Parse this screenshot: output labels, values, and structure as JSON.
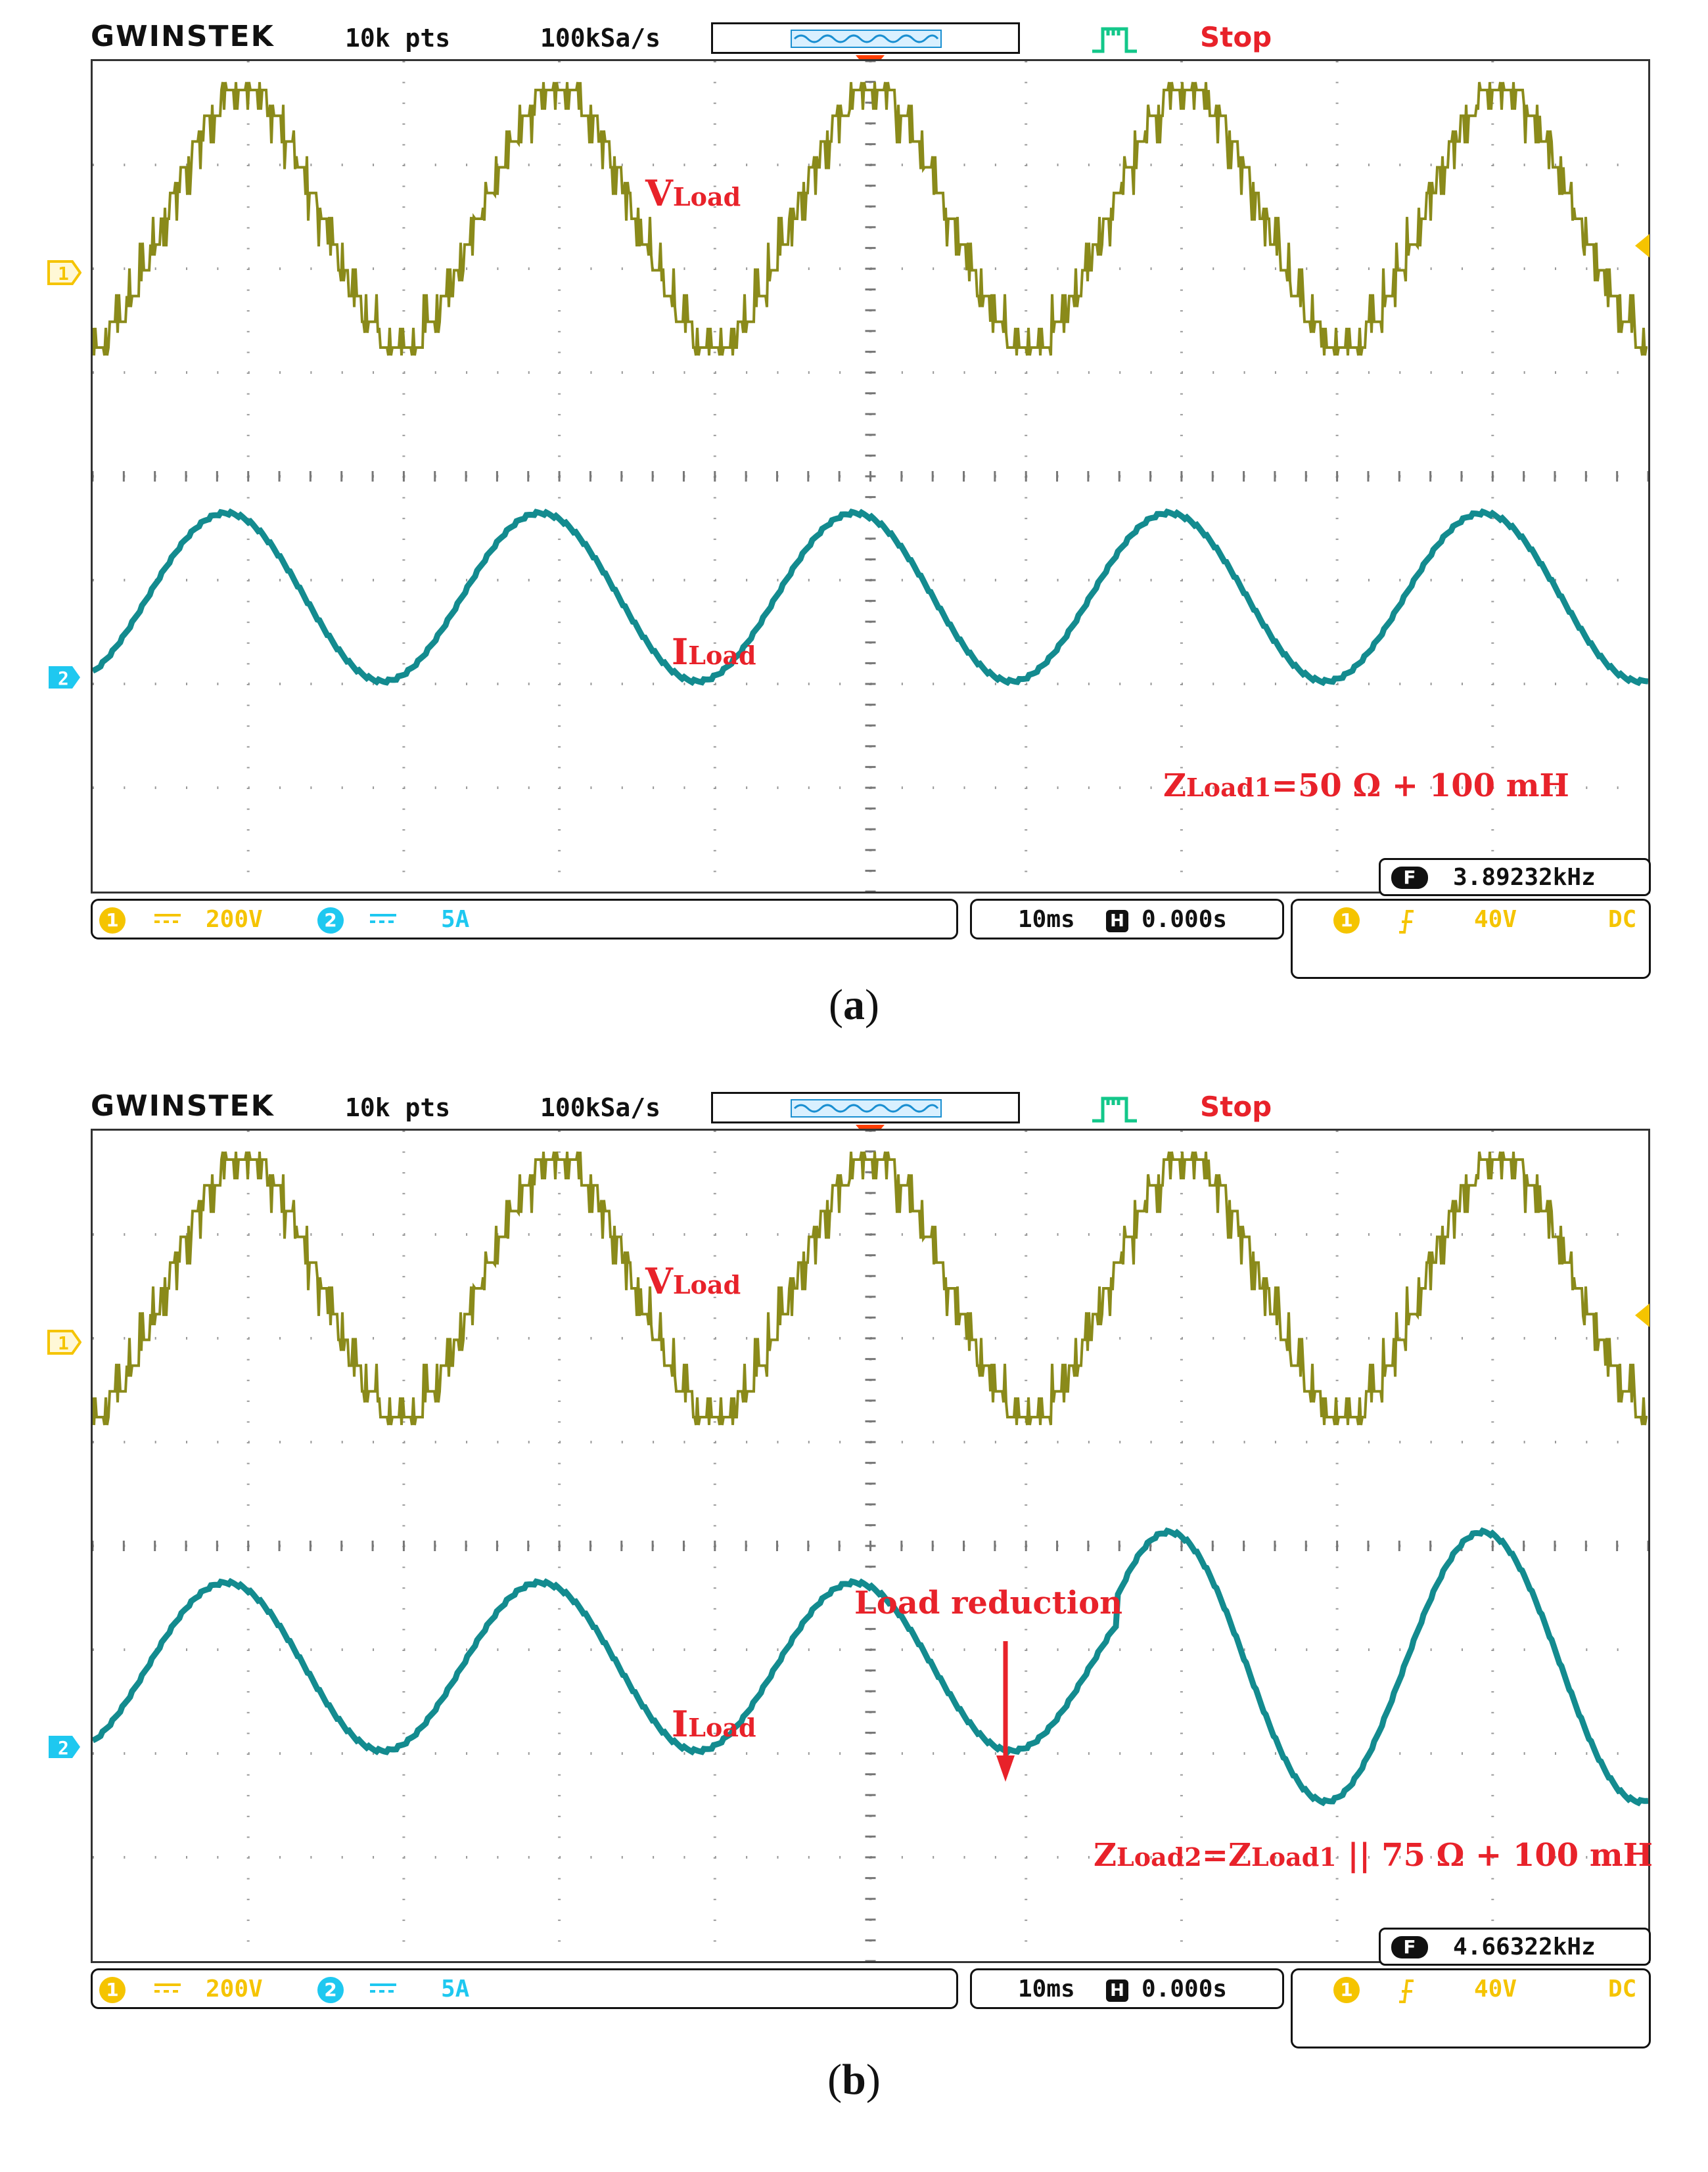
{
  "scope_a": {
    "brand": "GWINSTEK",
    "points": "10k pts",
    "sample_rate": "100kSa/s",
    "run_state": "Stop",
    "ch1_marker": "1",
    "ch2_marker": "2",
    "vload_main": "V",
    "vload_sub": "Load",
    "iload_main": "I",
    "iload_sub": "Load",
    "zload_text_main": "Z",
    "zload_text_sub": "Load1",
    "zload_text_rest": "=50 Ω + 100 mH",
    "freq_icon": "F",
    "frequency": "3.89232kHz",
    "ch1_label": "1",
    "ch1_coupling": "DC",
    "ch1_scale": "200V",
    "ch2_label": "2",
    "ch2_scale": "5A",
    "timebase": "10ms",
    "h_icon": "H",
    "h_position": "0.000s",
    "trig_channel": "1",
    "trig_level": "40V",
    "trig_coupling": "DC",
    "caption_open": "(",
    "caption_letter": "a",
    "caption_close": ")"
  },
  "scope_b": {
    "brand": "GWINSTEK",
    "points": "10k pts",
    "sample_rate": "100kSa/s",
    "run_state": "Stop",
    "ch1_marker": "1",
    "ch2_marker": "2",
    "vload_main": "V",
    "vload_sub": "Load",
    "iload_main": "I",
    "iload_sub": "Load",
    "annotation": "Load reduction",
    "zload_main": "Z",
    "zload_sub1": "Load2",
    "zload_mid": "=Z",
    "zload_sub2": "Load1",
    "zload_rest": " || 75 Ω + 100 mH",
    "freq_icon": "F",
    "frequency": "4.66322kHz",
    "ch1_label": "1",
    "ch1_scale": "200V",
    "ch2_label": "2",
    "ch2_scale": "5A",
    "timebase": "10ms",
    "h_icon": "H",
    "h_position": "0.000s",
    "trig_channel": "1",
    "trig_level": "40V",
    "trig_coupling": "DC",
    "caption_open": "(",
    "caption_letter": "b",
    "caption_close": ")"
  },
  "colors": {
    "ch1_trace": "#8a8a1a",
    "ch2_trace": "#138b8f",
    "annotation": "#e8222a",
    "ch1_accent": "#f5c400",
    "ch2_accent": "#1ec8f0",
    "trigger_marker": "#ff3d00"
  },
  "icons": {
    "trigger_edge": "rising-edge-icon",
    "freq_counter": "frequency-counter-icon",
    "horizontal_position": "h-position-icon",
    "channel_dc": "dc-coupling-icon",
    "arrow": "down-arrow-icon"
  }
}
